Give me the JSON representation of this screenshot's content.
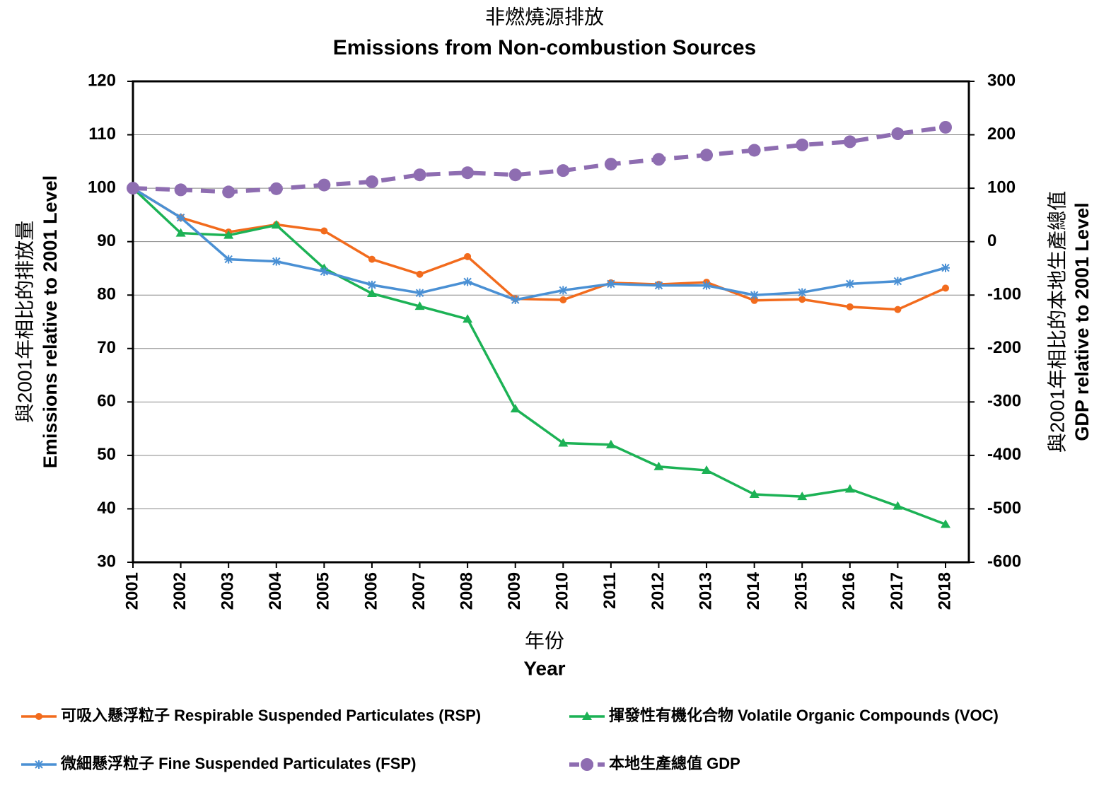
{
  "chart_data": {
    "type": "line",
    "title": [
      "非燃燒源排放",
      "Emissions from Non-combustion Sources"
    ],
    "ylabel": [
      "與2001年相比的排放量",
      "Emissions relative to 2001 Level"
    ],
    "y2label": [
      "與2001年相比的本地生產總值",
      "GDP relative to 2001 Level"
    ],
    "xlabel": [
      "年份",
      "Year"
    ],
    "categories": [
      "2001",
      "2002",
      "2003",
      "2004",
      "2005",
      "2006",
      "2007",
      "2008",
      "2009",
      "2010",
      "2011",
      "2012",
      "2013",
      "2014",
      "2015",
      "2016",
      "2017",
      "2018"
    ],
    "ylim": [
      30,
      120
    ],
    "yticks": [
      30,
      40,
      50,
      60,
      70,
      80,
      90,
      100,
      110,
      120
    ],
    "y2lim": [
      -600,
      300
    ],
    "y2ticks": [
      -600,
      -500,
      -400,
      -300,
      -200,
      -100,
      0,
      100,
      200,
      300
    ],
    "grid": true,
    "series": [
      {
        "name": "可吸入懸浮粒子 Respirable Suspended Particulates (RSP)",
        "color": "#f26b1d",
        "marker": "circle",
        "values": [
          100,
          94.5,
          91.8,
          93.2,
          92,
          86.7,
          83.9,
          87.2,
          79.3,
          79.1,
          82.3,
          82,
          82.4,
          79,
          79.2,
          77.8,
          77.3,
          81.3
        ]
      },
      {
        "name": "揮發性有機化合物 Volatile Organic Compounds (VOC)",
        "color": "#1cb255",
        "marker": "triangle",
        "values": [
          100,
          91.6,
          91.2,
          93.1,
          85,
          80.3,
          77.9,
          75.5,
          58.7,
          52.3,
          52,
          47.9,
          47.2,
          42.7,
          42.3,
          43.7,
          40.5,
          37.1
        ]
      },
      {
        "name": "微細懸浮粒子 Fine Suspended Particulates (FSP)",
        "color": "#4a90d4",
        "marker": "star",
        "values": [
          100,
          94.5,
          86.7,
          86.3,
          84.4,
          81.9,
          80.4,
          82.5,
          79.1,
          80.9,
          82.1,
          81.8,
          81.8,
          80,
          80.5,
          82.1,
          82.6,
          85.1
        ]
      },
      {
        "name": "本地生產總值 GDP",
        "color": "#8e6db1",
        "marker": "bigcircle",
        "dash": true,
        "axis": "y2",
        "values": [
          100,
          97,
          93,
          99,
          106,
          112,
          125,
          129,
          125,
          133,
          145,
          154,
          162,
          171,
          181,
          187,
          202,
          214
        ]
      }
    ]
  }
}
